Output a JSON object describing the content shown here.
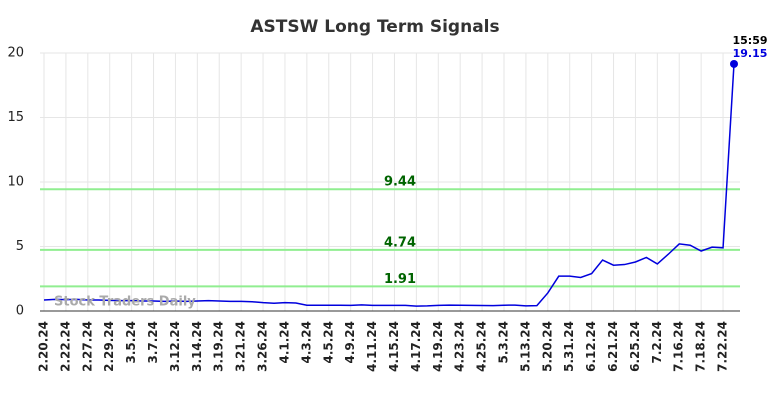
{
  "chart_data": {
    "type": "line",
    "title": "ASTSW Long Term Signals",
    "watermark": "Stock Traders Daily",
    "categories": [
      "2.20.24",
      null,
      "2.22.24",
      null,
      "2.27.24",
      null,
      "2.29.24",
      null,
      "3.5.24",
      null,
      "3.7.24",
      null,
      "3.12.24",
      null,
      "3.14.24",
      null,
      "3.19.24",
      null,
      "3.21.24",
      null,
      "3.26.24",
      null,
      "4.1.24",
      null,
      "4.3.24",
      null,
      "4.5.24",
      null,
      "4.9.24",
      null,
      "4.11.24",
      null,
      "4.15.24",
      null,
      "4.17.24",
      null,
      "4.19.24",
      null,
      "4.23.24",
      null,
      "4.25.24",
      null,
      "5.3.24",
      null,
      "5.13.24",
      null,
      "5.20.24",
      null,
      "5.31.24",
      null,
      "6.12.24",
      null,
      "6.21.24",
      null,
      "6.25.24",
      null,
      "7.2.24",
      null,
      "7.16.24",
      null,
      "7.18.24",
      null,
      "7.22.24",
      null
    ],
    "series": [
      {
        "color": "#0000dd",
        "values": [
          0.85,
          0.9,
          0.88,
          0.9,
          0.85,
          0.85,
          0.82,
          0.8,
          0.8,
          0.78,
          0.78,
          0.75,
          0.78,
          0.75,
          0.78,
          0.8,
          0.78,
          0.75,
          0.75,
          0.72,
          0.65,
          0.6,
          0.65,
          0.62,
          0.45,
          0.45,
          0.45,
          0.45,
          0.44,
          0.47,
          0.44,
          0.44,
          0.44,
          0.44,
          0.38,
          0.4,
          0.44,
          0.46,
          0.45,
          0.44,
          0.43,
          0.42,
          0.45,
          0.46,
          0.4,
          0.42,
          1.4,
          2.7,
          2.7,
          2.6,
          2.9,
          3.95,
          3.55,
          3.6,
          3.8,
          4.15,
          3.65,
          4.4,
          5.2,
          5.1,
          4.65,
          4.95,
          4.9,
          19.15
        ]
      }
    ],
    "last_time": "15:59",
    "hlines": [
      9.44,
      4.74,
      1.91
    ],
    "hline_color": "#90ee90",
    "ylim": [
      0,
      20
    ],
    "yticks": [
      0,
      5,
      10,
      15,
      20
    ],
    "grid": true
  }
}
